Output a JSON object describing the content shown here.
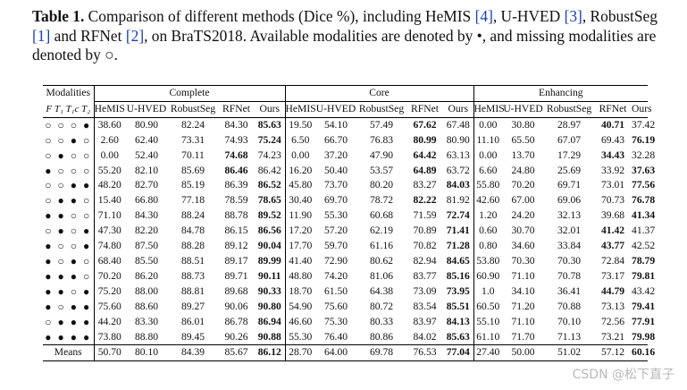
{
  "caption": {
    "label": "Table 1.",
    "seg1": " Comparison of different methods (Dice %), including HeMIS ",
    "ref1": "[4]",
    "seg2": ", U-HVED ",
    "ref2": "[3]",
    "seg3": ", RobustSeg ",
    "ref3": "[1]",
    "seg4": " and RFNet ",
    "ref4": "[2]",
    "seg5": ", on BraTS2018. Available modalities are denoted by •, and missing modalities are denoted by ○."
  },
  "table": {
    "group_headers": [
      "Modalities",
      "Complete",
      "Core",
      "Enhancing"
    ],
    "modality_header": "F T₁ T₁c T₂",
    "method_headers": [
      "HeMIS",
      "U-HVED",
      "RobustSeg",
      "RFNet",
      "Ours"
    ],
    "rows": [
      {
        "mods": "○ ○ ○ ●",
        "vals": [
          "38.60",
          "80.90",
          "82.24",
          "84.30",
          "85.63",
          "19.50",
          "54.10",
          "57.49",
          "67.62",
          "67.48",
          "0.00",
          "30.80",
          "28.97",
          "40.71",
          "37.42"
        ],
        "bold": [
          4,
          8,
          13
        ]
      },
      {
        "mods": "○ ○ ● ○",
        "vals": [
          "2.60",
          "62.40",
          "73.31",
          "74.93",
          "75.24",
          "6.50",
          "66.70",
          "76.83",
          "80.99",
          "80.90",
          "11.10",
          "65.50",
          "67.07",
          "69.43",
          "76.19"
        ],
        "bold": [
          4,
          8,
          14
        ]
      },
      {
        "mods": "○ ● ○ ○",
        "vals": [
          "0.00",
          "52.40",
          "70.11",
          "74.68",
          "74.23",
          "0.00",
          "37.20",
          "47.90",
          "64.42",
          "63.13",
          "0.00",
          "13.70",
          "17.29",
          "34.43",
          "32.28"
        ],
        "bold": [
          3,
          8,
          13
        ]
      },
      {
        "mods": "● ○ ○ ○",
        "vals": [
          "55.20",
          "82.10",
          "85.69",
          "86.46",
          "86.42",
          "16.20",
          "50.40",
          "53.57",
          "64.89",
          "63.72",
          "6.60",
          "24.80",
          "25.69",
          "33.92",
          "37.63"
        ],
        "bold": [
          3,
          8,
          14
        ]
      },
      {
        "mods": "○ ○ ● ●",
        "vals": [
          "48.20",
          "82.70",
          "85.19",
          "86.39",
          "86.52",
          "45.80",
          "73.70",
          "80.20",
          "83.27",
          "84.03",
          "55.80",
          "70.20",
          "69.71",
          "73.01",
          "77.56"
        ],
        "bold": [
          4,
          9,
          14
        ]
      },
      {
        "mods": "○ ● ● ○",
        "vals": [
          "15.40",
          "66.80",
          "77.18",
          "78.59",
          "78.65",
          "30.40",
          "69.70",
          "78.72",
          "82.22",
          "81.92",
          "42.60",
          "67.00",
          "69.06",
          "70.73",
          "76.78"
        ],
        "bold": [
          4,
          8,
          14
        ]
      },
      {
        "mods": "● ● ○ ○",
        "vals": [
          "71.10",
          "84.30",
          "88.24",
          "88.78",
          "89.52",
          "11.90",
          "55.30",
          "60.68",
          "71.59",
          "72.74",
          "1.20",
          "24.20",
          "32.13",
          "39.68",
          "41.34"
        ],
        "bold": [
          4,
          9,
          14
        ]
      },
      {
        "mods": "○ ● ○ ●",
        "vals": [
          "47.30",
          "82.20",
          "84.78",
          "86.15",
          "86.56",
          "17.20",
          "57.20",
          "62.19",
          "70.89",
          "71.41",
          "0.60",
          "30.70",
          "32.01",
          "41.42",
          "41.37"
        ],
        "bold": [
          4,
          9,
          13
        ]
      },
      {
        "mods": "● ○ ○ ●",
        "vals": [
          "74.80",
          "87.50",
          "88.28",
          "89.12",
          "90.04",
          "17.70",
          "59.70",
          "61.16",
          "70.82",
          "71.28",
          "0.80",
          "34.60",
          "33.84",
          "43.77",
          "42.52"
        ],
        "bold": [
          4,
          9,
          13
        ]
      },
      {
        "mods": "● ○ ● ○",
        "vals": [
          "68.40",
          "85.50",
          "88.51",
          "89.17",
          "89.99",
          "41.40",
          "72.90",
          "80.62",
          "82.94",
          "84.65",
          "53.80",
          "70.30",
          "70.30",
          "72.84",
          "78.79"
        ],
        "bold": [
          4,
          9,
          14
        ]
      },
      {
        "mods": "● ● ● ○",
        "vals": [
          "70.20",
          "86.20",
          "88.73",
          "89.71",
          "90.11",
          "48.80",
          "74.20",
          "81.06",
          "83.77",
          "85.16",
          "60.90",
          "71.10",
          "70.78",
          "73.17",
          "79.81"
        ],
        "bold": [
          4,
          9,
          14
        ]
      },
      {
        "mods": "● ● ○ ●",
        "vals": [
          "75.20",
          "88.00",
          "88.81",
          "89.68",
          "90.33",
          "18.70",
          "61.50",
          "64.38",
          "73.09",
          "73.95",
          "1.0",
          "34.10",
          "36.41",
          "44.79",
          "43.42"
        ],
        "bold": [
          4,
          9,
          13
        ]
      },
      {
        "mods": "● ○ ● ●",
        "vals": [
          "75.60",
          "88.60",
          "89.27",
          "90.06",
          "90.80",
          "54.90",
          "75.60",
          "80.72",
          "83.54",
          "85.51",
          "60.50",
          "71.20",
          "70.88",
          "73.13",
          "79.41"
        ],
        "bold": [
          4,
          9,
          14
        ]
      },
      {
        "mods": "○ ● ● ●",
        "vals": [
          "44.20",
          "83.30",
          "86.01",
          "86.78",
          "86.94",
          "46.60",
          "75.30",
          "80.33",
          "83.97",
          "84.13",
          "55.10",
          "71.10",
          "70.10",
          "72.56",
          "77.91"
        ],
        "bold": [
          4,
          9,
          14
        ]
      },
      {
        "mods": "● ● ● ●",
        "vals": [
          "73.80",
          "88.80",
          "89.45",
          "90.26",
          "90.88",
          "55.30",
          "76.40",
          "80.86",
          "84.02",
          "85.63",
          "61.10",
          "71.70",
          "71.13",
          "73.21",
          "79.98"
        ],
        "bold": [
          4,
          9,
          14
        ]
      }
    ],
    "means": {
      "label": "Means",
      "vals": [
        "50.70",
        "80.10",
        "84.39",
        "85.67",
        "86.12",
        "28.70",
        "64.00",
        "69.78",
        "76.53",
        "77.04",
        "27.40",
        "50.00",
        "51.02",
        "57.12",
        "60.16"
      ],
      "bold": [
        4,
        9,
        14
      ]
    }
  },
  "watermark": "CSDN @松下直子"
}
